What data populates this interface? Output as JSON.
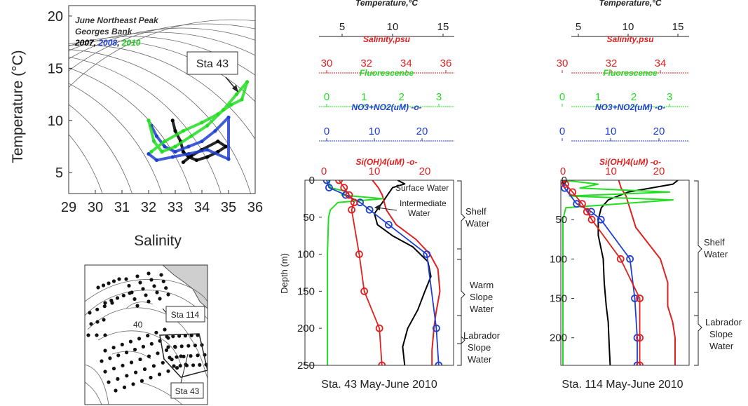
{
  "colors": {
    "black": "#000000",
    "blue": "#1f3fd0",
    "green": "#22dd22",
    "red": "#e02020",
    "grey": "#555555"
  },
  "ts_plot": {
    "legend": {
      "line1": "June Northeast Peak",
      "line2": "Georges Bank",
      "y2007": "2007",
      "y2008": "2008",
      "y2010": "2010",
      "sep1": ", ",
      "sep2": ", "
    },
    "station_label": "Sta 43",
    "xlabel": "Salinity",
    "ylabel": "Temperature (°C)",
    "xticks": [
      "29",
      "30",
      "31",
      "32",
      "33",
      "34",
      "35",
      "36"
    ],
    "yticks": [
      "5",
      "10",
      "15",
      "20"
    ]
  },
  "map": {
    "sta114": "Sta 114",
    "sta43": "Sta 43",
    "depth_label": "40"
  },
  "profile43": {
    "temp_title": "Temperature,°C",
    "temp_ticks": [
      "5",
      "10",
      "15"
    ],
    "sal_title": "Salinity,psu",
    "sal_ticks": [
      "30",
      "32",
      "34",
      "36"
    ],
    "fl_title": "Fluorescence",
    "fl_ticks": [
      "0",
      "1",
      "2",
      "3"
    ],
    "no3_title": "NO3+NO2(uM)  -o-",
    "no3_ticks": [
      "0",
      "10",
      "20"
    ],
    "si_title": "Si(OH)4(uM) -o-",
    "si_ticks": [
      "0",
      "10",
      "20"
    ],
    "depth_ticks": [
      "0",
      "50",
      "100",
      "150",
      "200",
      "250"
    ],
    "ylabel": "Depth (m)",
    "caption": "Sta. 43 May-June 2010",
    "surface_water": "Surface Water",
    "intermediate1": "Intermediate",
    "intermediate2": "Water",
    "shelf1": "Shelf",
    "shelf2": "Water",
    "warm1": "Warm",
    "warm2": "Slope",
    "warm3": "Water",
    "lab1": "Labrador",
    "lab2": "Slope",
    "lab3": "Water"
  },
  "profile114": {
    "temp_title": "Temperature,°C",
    "temp_ticks": [
      "5",
      "10",
      "15"
    ],
    "sal_title": "Salinity,psu",
    "sal_ticks": [
      "30",
      "32",
      "34"
    ],
    "fl_title": "Fluorescence",
    "fl_ticks": [
      "0",
      "1",
      "2",
      "3"
    ],
    "no3_title": "NO3+NO2(uM)  -o-",
    "no3_ticks": [
      "0",
      "10",
      "20"
    ],
    "si_title": "Si(OH)4(uM) -o-",
    "si_ticks": [
      "0",
      "10",
      "20"
    ],
    "depth_ticks": [
      "0",
      "50",
      "100",
      "150",
      "200"
    ],
    "caption": "Sta. 114 May-June 2010",
    "shelf1": "Shelf",
    "shelf2": "Water",
    "lab1": "Labrador",
    "lab2": "Slope",
    "lab3": "Water"
  },
  "chart_data": [
    {
      "type": "scatter",
      "title": "June Northeast Peak Georges Bank",
      "xlabel": "Salinity",
      "ylabel": "Temperature (°C)",
      "xlim": [
        29,
        36
      ],
      "ylim": [
        3,
        21
      ],
      "series": [
        {
          "name": "2007",
          "color": "#000000",
          "x": [
            32.9,
            33.0,
            33.2,
            33.3,
            33.5,
            33.8,
            34.2,
            34.6,
            34.9,
            34.6,
            34.0,
            33.6,
            33.3
          ],
          "y": [
            10.0,
            9.0,
            8.0,
            7.0,
            6.5,
            6.2,
            6.5,
            7.0,
            7.5,
            8.0,
            7.2,
            6.6,
            6.0
          ]
        },
        {
          "name": "2008",
          "color": "#1f3fd0",
          "x": [
            32.1,
            32.3,
            32.6,
            33.0,
            33.5,
            34.0,
            34.5,
            35.0,
            35.0,
            34.2,
            33.5,
            32.9,
            32.3,
            32.0
          ],
          "y": [
            9.5,
            8.5,
            7.5,
            7.0,
            7.5,
            8.0,
            9.0,
            10.3,
            6.3,
            7.2,
            6.8,
            6.5,
            6.2,
            6.8
          ]
        },
        {
          "name": "2010",
          "color": "#22dd22",
          "x": [
            32.0,
            32.2,
            32.5,
            33.0,
            33.6,
            34.2,
            34.8,
            35.3,
            35.7,
            35.5,
            35.1,
            34.6,
            34.0,
            33.3,
            32.6,
            32.1
          ],
          "y": [
            10.0,
            8.0,
            7.0,
            7.5,
            8.5,
            9.5,
            11.0,
            12.5,
            13.7,
            12.0,
            11.5,
            10.6,
            9.8,
            9.0,
            8.0,
            7.0
          ]
        }
      ]
    },
    {
      "type": "line",
      "title": "Sta. 43 May-June 2010",
      "ylabel": "Depth (m)",
      "ylim": [
        250,
        0
      ],
      "series": [
        {
          "name": "Temperature,°C",
          "color": "#000000",
          "x": [
            10.5,
            11.2,
            10.0,
            9.5,
            9.0,
            8.2,
            8.5,
            10.0,
            12.0,
            13.5,
            13.8,
            13.2,
            12.5,
            11.5,
            11.0,
            11.2
          ],
          "depth": [
            0,
            5,
            10,
            20,
            30,
            45,
            60,
            75,
            90,
            110,
            130,
            150,
            175,
            200,
            225,
            250
          ]
        },
        {
          "name": "Salinity,psu",
          "color": "#e02020",
          "x": [
            32.3,
            32.6,
            32.8,
            33.0,
            33.5,
            34.5,
            35.2,
            35.6,
            35.7,
            35.5,
            35.4,
            35.3,
            35.3
          ],
          "depth": [
            0,
            10,
            20,
            40,
            60,
            80,
            100,
            120,
            150,
            180,
            200,
            230,
            250
          ]
        },
        {
          "name": "Fluorescence",
          "color": "#22dd22",
          "x": [
            0.05,
            0.1,
            0.5,
            0.4,
            1.5,
            0.3,
            0.1,
            0.05,
            0.02,
            0.02,
            0.02
          ],
          "depth": [
            0,
            10,
            15,
            20,
            25,
            30,
            40,
            50,
            100,
            200,
            250
          ]
        },
        {
          "name": "NO3+NO2(uM)",
          "color": "#1f3fd0",
          "x": [
            0,
            0.5,
            4,
            7,
            9,
            13,
            21,
            23,
            23.5
          ],
          "depth": [
            0,
            10,
            20,
            30,
            40,
            60,
            100,
            200,
            250
          ]
        },
        {
          "name": "Si(OH)4(uM)",
          "color": "#e02020",
          "x": [
            3,
            4,
            5,
            6,
            5.5,
            7,
            8,
            11,
            11.5
          ],
          "depth": [
            0,
            10,
            20,
            30,
            40,
            100,
            150,
            200,
            250
          ]
        }
      ],
      "annotations": [
        "Surface Water",
        "Intermediate Water",
        "Shelf Water",
        "Warm Slope Water",
        "Labrador Slope Water"
      ]
    },
    {
      "type": "line",
      "title": "Sta. 114 May-June 2010",
      "ylabel": "Depth (m)",
      "ylim": [
        235,
        0
      ],
      "series": [
        {
          "name": "Temperature,°C",
          "color": "#000000",
          "x": [
            15.0,
            14.5,
            10.0,
            8.0,
            7.3,
            7.0,
            7.0,
            7.5,
            7.6,
            7.8,
            8.0,
            8.1,
            8.2
          ],
          "depth": [
            0,
            5,
            15,
            25,
            35,
            50,
            70,
            100,
            130,
            160,
            180,
            210,
            235
          ]
        },
        {
          "name": "Salinity,psu",
          "color": "#e02020",
          "x": [
            32.3,
            32.4,
            32.6,
            32.8,
            33.0,
            33.5,
            34.0,
            34.3,
            34.3,
            34.5,
            34.6,
            34.6
          ],
          "depth": [
            0,
            10,
            20,
            40,
            60,
            80,
            100,
            130,
            160,
            180,
            200,
            235
          ]
        },
        {
          "name": "Fluorescence",
          "color": "#22dd22",
          "x": [
            0.05,
            1.0,
            0.5,
            3.0,
            0.2,
            3.1,
            0.1,
            0.02,
            0.02
          ],
          "depth": [
            0,
            5,
            10,
            15,
            20,
            25,
            35,
            50,
            235
          ]
        },
        {
          "name": "NO3+NO2(uM)",
          "color": "#1f3fd0",
          "x": [
            0,
            0.5,
            3,
            6,
            8,
            14,
            15,
            15.5,
            15.5
          ],
          "depth": [
            0,
            10,
            30,
            40,
            50,
            100,
            150,
            200,
            235
          ]
        },
        {
          "name": "Si(OH)4(uM)",
          "color": "#e02020",
          "x": [
            0,
            0.5,
            2,
            4,
            5,
            6,
            12,
            16,
            16,
            16
          ],
          "depth": [
            0,
            5,
            15,
            30,
            40,
            50,
            100,
            150,
            200,
            235
          ]
        }
      ],
      "annotations": [
        "Shelf Water",
        "Labrador Slope Water"
      ]
    }
  ]
}
